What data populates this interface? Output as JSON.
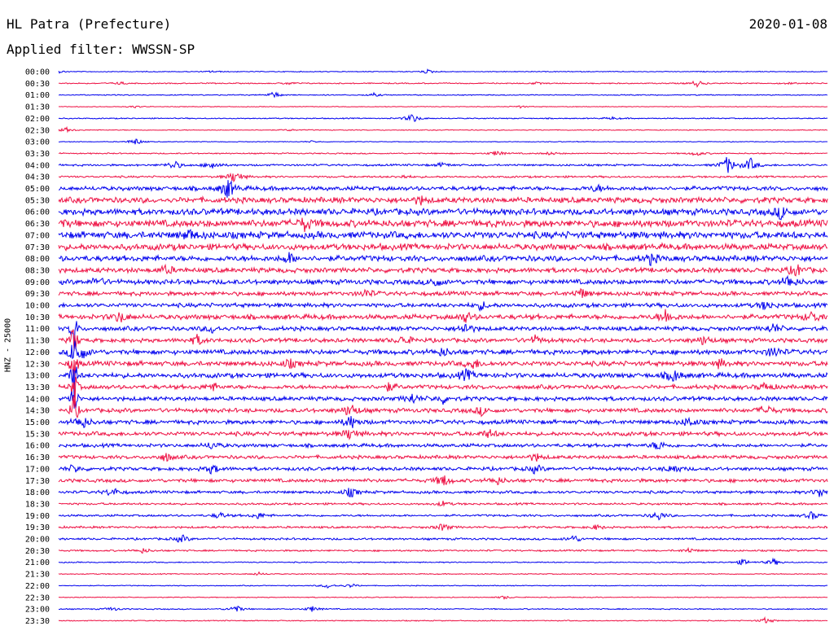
{
  "header": {
    "station": "HL Patra (Prefecture)",
    "date": "2020-01-08",
    "filter": "Applied filter: WWSSN-SP"
  },
  "chart_data": {
    "type": "seismogram",
    "title": "HL Patra (Prefecture)",
    "date": "2020-01-08",
    "filter": "WWSSN-SP",
    "channel_label": "HNZ - 25000",
    "trace_colors": [
      "#0000ee",
      "#ee1144"
    ],
    "rows": [
      {
        "label": "00:00",
        "noise": 0.6,
        "events": [
          [
            0.0,
            1.5
          ],
          [
            0.2,
            1.2
          ],
          [
            0.48,
            2.5
          ]
        ]
      },
      {
        "label": "00:30",
        "noise": 0.8,
        "events": [
          [
            0.08,
            1.5
          ],
          [
            0.3,
            1.6
          ],
          [
            0.62,
            1.4
          ],
          [
            0.83,
            4.0
          ],
          [
            0.95,
            1.2
          ]
        ]
      },
      {
        "label": "01:00",
        "noise": 0.7,
        "events": [
          [
            0.28,
            4.0
          ],
          [
            0.41,
            2.0
          ]
        ]
      },
      {
        "label": "01:30",
        "noise": 0.5,
        "events": [
          [
            0.1,
            1.5
          ],
          [
            0.6,
            1.5
          ]
        ]
      },
      {
        "label": "02:00",
        "noise": 0.8,
        "events": [
          [
            0.46,
            6.0
          ],
          [
            0.72,
            1.5
          ]
        ]
      },
      {
        "label": "02:30",
        "noise": 0.6,
        "events": [
          [
            0.01,
            3.0
          ],
          [
            0.3,
            1.2
          ]
        ]
      },
      {
        "label": "03:00",
        "noise": 0.5,
        "events": [
          [
            0.1,
            4.5
          ],
          [
            0.33,
            1.2
          ]
        ]
      },
      {
        "label": "03:30",
        "noise": 0.9,
        "events": [
          [
            0.57,
            3.5
          ],
          [
            0.64,
            2.0
          ],
          [
            0.83,
            3.0
          ]
        ]
      },
      {
        "label": "04:00",
        "noise": 1.4,
        "events": [
          [
            0.15,
            6.0
          ],
          [
            0.2,
            5.5
          ],
          [
            0.5,
            3.0
          ],
          [
            0.87,
            11.0
          ],
          [
            0.9,
            8.0
          ]
        ]
      },
      {
        "label": "04:30",
        "noise": 1.4,
        "events": [
          [
            0.23,
            9.0
          ],
          [
            0.45,
            2.0
          ]
        ]
      },
      {
        "label": "05:00",
        "noise": 3.0,
        "events": [
          [
            0.22,
            13.0
          ],
          [
            0.7,
            4.0
          ]
        ]
      },
      {
        "label": "05:30",
        "noise": 4.0,
        "events": [
          [
            0.47,
            4.5
          ]
        ]
      },
      {
        "label": "06:00",
        "noise": 4.5,
        "events": [
          [
            0.94,
            8.0
          ]
        ]
      },
      {
        "label": "06:30",
        "noise": 5.0,
        "events": [
          [
            0.32,
            8.0
          ],
          [
            0.0,
            5.0
          ]
        ]
      },
      {
        "label": "07:00",
        "noise": 5.0,
        "events": [
          [
            0.17,
            6.0
          ]
        ]
      },
      {
        "label": "07:30",
        "noise": 4.5,
        "events": []
      },
      {
        "label": "08:00",
        "noise": 4.0,
        "events": [
          [
            0.3,
            6.0
          ],
          [
            0.77,
            6.0
          ]
        ]
      },
      {
        "label": "08:30",
        "noise": 3.5,
        "events": [
          [
            0.14,
            5.0
          ],
          [
            0.96,
            7.0
          ]
        ]
      },
      {
        "label": "09:00",
        "noise": 3.5,
        "events": [
          [
            0.05,
            5.0
          ],
          [
            0.49,
            6.0
          ],
          [
            0.95,
            8.0
          ]
        ]
      },
      {
        "label": "09:30",
        "noise": 3.0,
        "events": [
          [
            0.4,
            5.0
          ],
          [
            0.68,
            6.0
          ]
        ]
      },
      {
        "label": "10:00",
        "noise": 3.0,
        "events": [
          [
            0.55,
            5.0
          ],
          [
            0.92,
            6.0
          ]
        ]
      },
      {
        "label": "10:30",
        "noise": 3.5,
        "events": [
          [
            0.08,
            7.0
          ],
          [
            0.53,
            6.0
          ],
          [
            0.79,
            9.0
          ],
          [
            0.98,
            7.0
          ]
        ]
      },
      {
        "label": "11:00",
        "noise": 3.0,
        "events": [
          [
            0.2,
            5.0
          ],
          [
            0.53,
            7.0
          ],
          [
            0.93,
            6.0
          ]
        ]
      },
      {
        "label": "11:30",
        "noise": 3.0,
        "events": [
          [
            0.18,
            6.0
          ],
          [
            0.45,
            6.0
          ],
          [
            0.62,
            5.0
          ],
          [
            0.84,
            6.0
          ]
        ]
      },
      {
        "label": "12:00",
        "noise": 3.5,
        "events": [
          [
            0.03,
            9.0
          ],
          [
            0.5,
            5.0
          ],
          [
            0.93,
            7.0
          ]
        ]
      },
      {
        "label": "12:30",
        "noise": 3.5,
        "events": [
          [
            0.3,
            5.0
          ],
          [
            0.54,
            6.0
          ],
          [
            0.86,
            5.0
          ]
        ]
      },
      {
        "label": "13:00",
        "noise": 3.5,
        "events": [
          [
            0.53,
            7.0
          ],
          [
            0.8,
            8.0
          ]
        ]
      },
      {
        "label": "13:30",
        "noise": 3.0,
        "events": [
          [
            0.2,
            5.0
          ],
          [
            0.43,
            5.0
          ],
          [
            0.92,
            5.0
          ]
        ]
      },
      {
        "label": "14:00",
        "noise": 3.0,
        "events": [
          [
            0.46,
            6.0
          ],
          [
            0.5,
            5.0
          ]
        ]
      },
      {
        "label": "14:30",
        "noise": 3.0,
        "events": [
          [
            0.38,
            9.0
          ],
          [
            0.55,
            5.0
          ],
          [
            0.92,
            7.0
          ]
        ]
      },
      {
        "label": "15:00",
        "noise": 3.0,
        "events": [
          [
            0.03,
            9.0
          ],
          [
            0.38,
            8.0
          ],
          [
            0.82,
            6.0
          ]
        ]
      },
      {
        "label": "15:30",
        "noise": 3.0,
        "events": [
          [
            0.38,
            8.0
          ],
          [
            0.56,
            5.0
          ]
        ]
      },
      {
        "label": "16:00",
        "noise": 2.5,
        "events": [
          [
            0.2,
            5.0
          ],
          [
            0.78,
            6.0
          ]
        ]
      },
      {
        "label": "16:30",
        "noise": 2.5,
        "events": [
          [
            0.14,
            5.0
          ],
          [
            0.62,
            5.0
          ]
        ]
      },
      {
        "label": "17:00",
        "noise": 2.5,
        "events": [
          [
            0.02,
            5.0
          ],
          [
            0.2,
            6.0
          ],
          [
            0.62,
            5.0
          ],
          [
            0.8,
            6.0
          ]
        ]
      },
      {
        "label": "17:30",
        "noise": 2.5,
        "events": [
          [
            0.5,
            8.0
          ],
          [
            0.57,
            5.0
          ]
        ]
      },
      {
        "label": "18:00",
        "noise": 2.0,
        "events": [
          [
            0.07,
            6.0
          ],
          [
            0.38,
            6.0
          ],
          [
            0.99,
            6.0
          ]
        ]
      },
      {
        "label": "18:30",
        "noise": 1.5,
        "events": [
          [
            0.5,
            3.0
          ]
        ]
      },
      {
        "label": "19:00",
        "noise": 1.5,
        "events": [
          [
            0.21,
            4.0
          ],
          [
            0.26,
            4.0
          ],
          [
            0.78,
            6.0
          ],
          [
            0.98,
            5.0
          ]
        ]
      },
      {
        "label": "19:30",
        "noise": 1.5,
        "events": [
          [
            0.5,
            5.0
          ],
          [
            0.7,
            3.0
          ]
        ]
      },
      {
        "label": "20:00",
        "noise": 1.5,
        "events": [
          [
            0.16,
            5.0
          ],
          [
            0.67,
            5.0
          ]
        ]
      },
      {
        "label": "20:30",
        "noise": 1.2,
        "events": [
          [
            0.11,
            3.0
          ],
          [
            0.82,
            3.0
          ]
        ]
      },
      {
        "label": "21:00",
        "noise": 0.8,
        "events": [
          [
            0.89,
            4.0
          ],
          [
            0.93,
            4.5
          ]
        ]
      },
      {
        "label": "21:30",
        "noise": 0.7,
        "events": [
          [
            0.26,
            2.0
          ]
        ]
      },
      {
        "label": "22:00",
        "noise": 0.6,
        "events": [
          [
            0.35,
            3.0
          ],
          [
            0.38,
            2.5
          ]
        ]
      },
      {
        "label": "22:30",
        "noise": 0.6,
        "events": [
          [
            0.58,
            2.0
          ]
        ]
      },
      {
        "label": "23:00",
        "noise": 0.8,
        "events": [
          [
            0.07,
            2.5
          ],
          [
            0.23,
            5.0
          ],
          [
            0.33,
            3.5
          ]
        ]
      },
      {
        "label": "23:30",
        "noise": 0.7,
        "events": [
          [
            0.92,
            4.0
          ]
        ]
      }
    ],
    "large_event": {
      "start_row": 22,
      "end_row": 29,
      "x": 0.02,
      "amplitude": 30
    }
  }
}
